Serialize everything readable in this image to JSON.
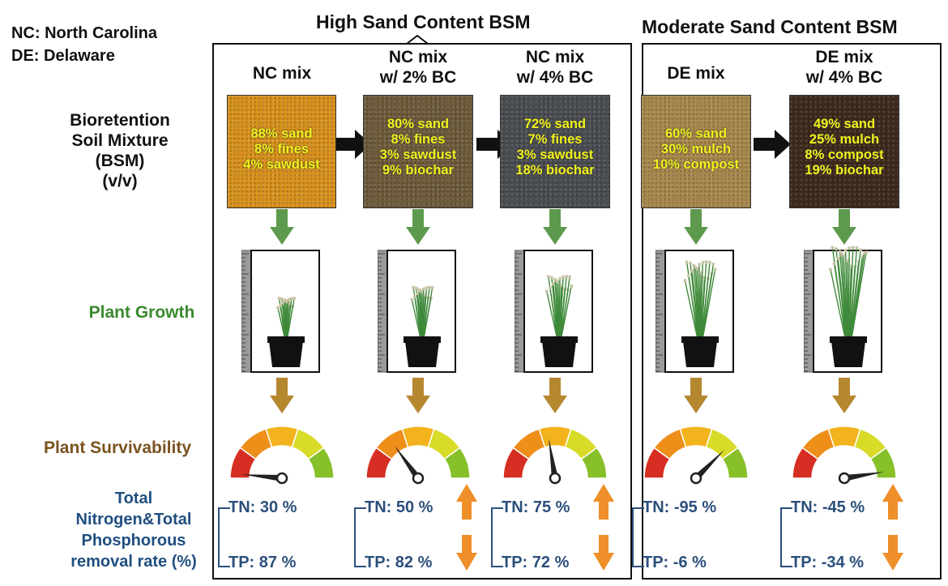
{
  "legend": [
    "NC: North Carolina",
    "DE: Delaware"
  ],
  "groups": {
    "high": "High Sand Content BSM",
    "moderate": "Moderate Sand Content BSM"
  },
  "row_labels": {
    "bsm": [
      "Bioretention",
      "Soil Mixture",
      "(BSM)",
      "(v/v)"
    ],
    "growth": "Plant Growth",
    "survivability": "Plant Survivability",
    "removal": [
      "Total",
      "Nitrogen&Total",
      "Phosphorous",
      "removal rate (%)"
    ]
  },
  "colors": {
    "growth_label": "#3a8a2e",
    "survivability_label": "#7a5320",
    "removal_label": "#1f4e80",
    "green_arrow": "#5e9a4d",
    "brown_arrow": "#b5872f",
    "orange_arrow": "#ee8f2a",
    "gauge_segments": [
      "#d62e22",
      "#ee8f1a",
      "#f2b31d",
      "#d8db28",
      "#88c02a"
    ]
  },
  "mixes": [
    {
      "title": [
        "NC mix"
      ],
      "soil_color": "#d9921c",
      "composition": [
        "88% sand",
        "8% fines",
        "4% sawdust"
      ],
      "plant_size": 0.3,
      "gauge_level": 0.03,
      "tn": "TN: 30 %",
      "tp": "TP: 87 %",
      "trend_arrows": false
    },
    {
      "title": [
        "NC mix",
        "w/ 2% BC"
      ],
      "soil_color": "#6e5c3c",
      "composition": [
        "80% sand",
        "8% fines",
        "3% sawdust",
        "9% biochar"
      ],
      "plant_size": 0.45,
      "gauge_level": 0.3,
      "tn": "TN: 50 %",
      "tp": "TP: 82 %",
      "trend_arrows": true
    },
    {
      "title": [
        "NC mix",
        "w/ 4% BC"
      ],
      "soil_color": "#4a4d52",
      "composition": [
        "72% sand",
        "7% fines",
        "3% sawdust",
        "18% biochar"
      ],
      "plant_size": 0.6,
      "gauge_level": 0.45,
      "tn": "TN: 75 %",
      "tp": "TP: 72 %",
      "trend_arrows": true
    },
    {
      "title": [
        "DE mix"
      ],
      "soil_color": "#a8884c",
      "composition": [
        "60% sand",
        "30% mulch",
        "10% compost"
      ],
      "plant_size": 0.8,
      "gauge_level": 0.75,
      "tn": "TN: -95 %",
      "tp": "TP: -6 %",
      "trend_arrows": false
    },
    {
      "title": [
        "DE mix",
        "w/ 4% BC"
      ],
      "soil_color": "#3e2a1c",
      "composition": [
        "49% sand",
        "25% mulch",
        "8% compost",
        "19% biochar"
      ],
      "plant_size": 1.0,
      "gauge_level": 0.95,
      "tn": "TN: -45 %",
      "tp": "TP: -34 %",
      "trend_arrows": true
    }
  ]
}
